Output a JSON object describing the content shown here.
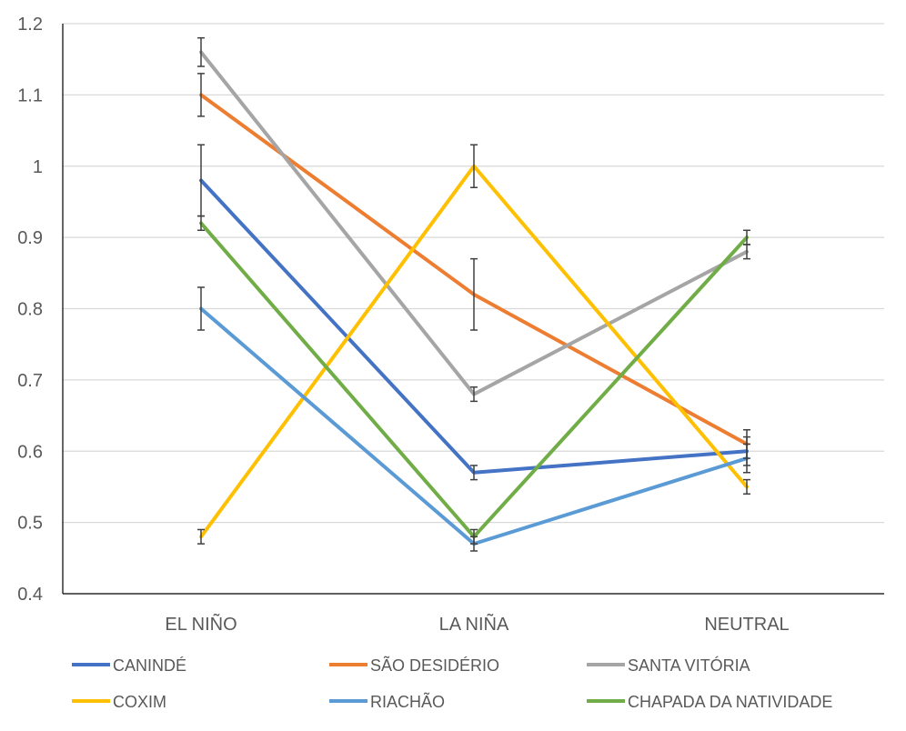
{
  "chart_data": {
    "type": "line",
    "title": "",
    "xlabel": "",
    "ylabel": "",
    "categories": [
      "EL NIÑO",
      "LA NIÑA",
      "NEUTRAL"
    ],
    "ylim": [
      0.4,
      1.2
    ],
    "yticks": [
      0.4,
      0.5,
      0.6,
      0.7,
      0.8,
      0.9,
      1,
      1.1,
      1.2
    ],
    "ytick_labels": [
      "0.4",
      "0.5",
      "0.6",
      "0.7",
      "0.8",
      "0.9",
      "1",
      "1.1",
      "1.2"
    ],
    "grid": true,
    "legend_position": "bottom",
    "series": [
      {
        "name": "CANINDÉ",
        "color": "#4472C4",
        "values": [
          0.98,
          0.57,
          0.6
        ],
        "error_bars": [
          [
            0.93,
            1.03
          ],
          [
            0.56,
            0.58
          ],
          [
            0.58,
            0.62
          ]
        ]
      },
      {
        "name": "SÃO DESIDÉRIO",
        "color": "#ED7D31",
        "values": [
          1.1,
          0.82,
          0.61
        ],
        "error_bars": [
          [
            1.07,
            1.13
          ],
          [
            0.77,
            0.87
          ],
          [
            0.59,
            0.63
          ]
        ]
      },
      {
        "name": "SANTA VITÓRIA",
        "color": "#A5A5A5",
        "values": [
          1.16,
          0.68,
          0.88
        ],
        "error_bars": [
          [
            1.14,
            1.18
          ],
          [
            0.67,
            0.69
          ],
          [
            0.87,
            0.89
          ]
        ]
      },
      {
        "name": "COXIM",
        "color": "#FFC000",
        "values": [
          0.48,
          1.0,
          0.55
        ],
        "error_bars": [
          [
            0.47,
            0.49
          ],
          [
            0.97,
            1.03
          ],
          [
            0.54,
            0.56
          ]
        ]
      },
      {
        "name": "RIACHÃO",
        "color": "#5B9BD5",
        "values": [
          0.8,
          0.47,
          0.59
        ],
        "error_bars": [
          [
            0.77,
            0.83
          ],
          [
            0.46,
            0.48
          ],
          [
            0.57,
            0.61
          ]
        ]
      },
      {
        "name": "CHAPADA DA NATIVIDADE",
        "color": "#70AD47",
        "values": [
          0.92,
          0.48,
          0.9
        ],
        "error_bars": [
          [
            0.91,
            0.93
          ],
          [
            0.47,
            0.49
          ],
          [
            0.89,
            0.91
          ]
        ]
      }
    ]
  }
}
